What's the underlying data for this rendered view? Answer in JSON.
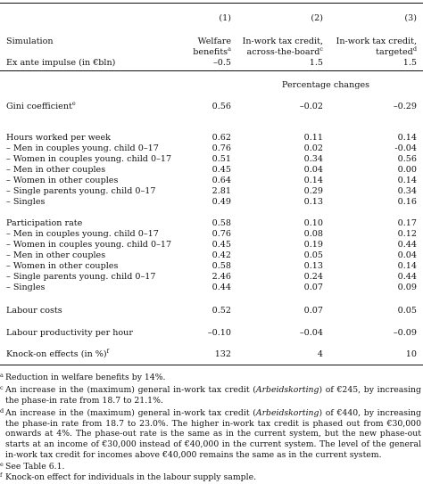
{
  "header": {
    "col_numbers": [
      "(1)",
      "(2)",
      "(3)"
    ],
    "row_label": "Simulation",
    "col1_line1": "Welfare",
    "col1_line2": "benefits",
    "col1_sup": "a",
    "col2_line1": "In-work tax credit,",
    "col2_line2": "across-the-board",
    "col2_sup": "c",
    "col3_line1": "In-work tax credit,",
    "col3_line2": "targeted",
    "col3_sup": "d",
    "impulse_label": "Ex ante impulse (in €bln)",
    "impulse_values": [
      "–0.5",
      "1.5",
      "1.5"
    ],
    "pct_changes": "Percentage changes"
  },
  "rows": {
    "gini": {
      "label": "Gini coefficient",
      "sup": "e",
      "v": [
        "0.56",
        "–0.02",
        "–0.29"
      ]
    },
    "hours": {
      "label": "Hours worked per week",
      "v": [
        "0.62",
        "0.11",
        "0.14"
      ]
    },
    "h1": {
      "label": "– Men in couples young. child 0–17",
      "v": [
        "0.76",
        "0.02",
        "-0.04"
      ]
    },
    "h2": {
      "label": "– Women in couples young. child 0–17",
      "v": [
        "0.51",
        "0.34",
        "0.56"
      ]
    },
    "h3": {
      "label": "– Men in other couples",
      "v": [
        "0.45",
        "0.04",
        "0.00"
      ]
    },
    "h4": {
      "label": "– Women in other couples",
      "v": [
        "0.64",
        "0.14",
        "0.14"
      ]
    },
    "h5": {
      "label": "– Single parents young. child 0–17",
      "v": [
        "2.81",
        "0.29",
        "0.34"
      ]
    },
    "h6": {
      "label": "– Singles",
      "v": [
        "0.49",
        "0.13",
        "0.16"
      ]
    },
    "part": {
      "label": "Participation rate",
      "v": [
        "0.58",
        "0.10",
        "0.17"
      ]
    },
    "p1": {
      "label": "– Men in couples young. child 0–17",
      "v": [
        "0.76",
        "0.08",
        "0.12"
      ]
    },
    "p2": {
      "label": "– Women in couples young. child 0–17",
      "v": [
        "0.45",
        "0.19",
        "0.44"
      ]
    },
    "p3": {
      "label": "– Men in other couples",
      "v": [
        "0.42",
        "0.05",
        "0.04"
      ]
    },
    "p4": {
      "label": "– Women in other couples",
      "v": [
        "0.58",
        "0.13",
        "0.14"
      ]
    },
    "p5": {
      "label": "– Single parents young. child 0–17",
      "v": [
        "2.46",
        "0.24",
        "0.44"
      ]
    },
    "p6": {
      "label": "– Singles",
      "v": [
        "0.44",
        "0.07",
        "0.09"
      ]
    },
    "labour_costs": {
      "label": "Labour costs",
      "v": [
        "0.52",
        "0.07",
        "0.05"
      ]
    },
    "productivity": {
      "label": "Labour productivity per hour",
      "v": [
        "–0.10",
        "–0.04",
        "–0.09"
      ]
    },
    "knockon": {
      "label": "Knock-on effects (in %)",
      "sup": "f",
      "v": [
        "132",
        "4",
        "10"
      ]
    }
  },
  "notes": {
    "a": {
      "mark": "a",
      "text": "Reduction in welfare benefits by 14%."
    },
    "c_pre": "An increase in the (maximum) general in-work tax credit (",
    "c_it": "Arbeidskorting",
    "c_post": ") of €245, by increasing the phase-in rate from 18.7 to 21.1%.",
    "c_mark": "c",
    "d_pre": "An increase in the (maximum) general in-work tax credit (",
    "d_it": "Arbeidskorting",
    "d_post": ") of €440, by increasing the phase-in rate from 18.7 to 23.0%. The higher in-work tax credit is phased out from €30,000 onwards at 4%. The phase-out rate is the same as in the current system, but the new phase-out starts at an income of €30,000 instead of €40,000 in the current system. The level of the general in-work tax credit for incomes above €40,000 remains the same as in the current system.",
    "d_mark": "d",
    "e": {
      "mark": "e",
      "text": "See Table 6.1."
    },
    "f": {
      "mark": "f",
      "text": "Knock-on effect for individuals in the labour supply sample."
    }
  }
}
